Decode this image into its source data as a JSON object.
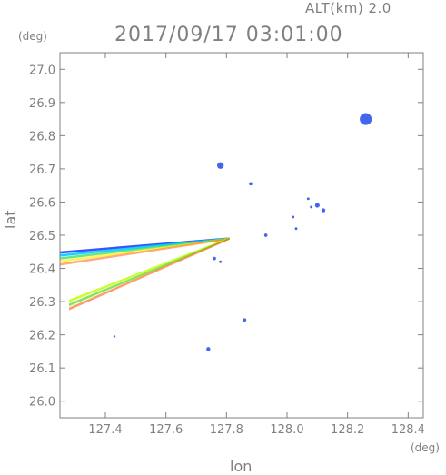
{
  "header": {
    "alt_label": "ALT(km)  2.0",
    "timestamp": "2017/09/17 03:01:00",
    "y_unit": "(deg)",
    "x_unit": "(deg)"
  },
  "chart_data": {
    "type": "scatter",
    "xlabel": "lon",
    "ylabel": "lat",
    "xlim": [
      127.25,
      128.45
    ],
    "ylim": [
      25.95,
      27.05
    ],
    "xticks": [
      127.4,
      127.6,
      127.8,
      128.0,
      128.2,
      128.4
    ],
    "xtick_labels": [
      "127.4",
      "127.6",
      "127.8",
      "128.0",
      "128.2",
      "128.4"
    ],
    "yticks": [
      26.0,
      26.1,
      26.2,
      26.3,
      26.4,
      26.5,
      26.6,
      26.7,
      26.8,
      26.9,
      27.0
    ],
    "ytick_labels": [
      "26.0",
      "26.1",
      "26.2",
      "26.3",
      "26.4",
      "26.5",
      "26.6",
      "26.7",
      "26.8",
      "26.9",
      "27.0"
    ],
    "grid": false,
    "streaks": [
      {
        "x": [
          127.25,
          127.81
        ],
        "y": [
          26.43,
          26.49
        ],
        "width": 0.018,
        "colors": [
          "#3355ff",
          "#00c8ff",
          "#33dd66",
          "#ffee00",
          "#ff5500"
        ]
      },
      {
        "x": [
          127.28,
          127.81
        ],
        "y": [
          26.29,
          26.49
        ],
        "width": 0.012,
        "colors": [
          "#ccff33",
          "#66dd33",
          "#ff5500"
        ]
      }
    ],
    "echoes": [
      {
        "x": 128.26,
        "y": 26.85,
        "size": 0.018,
        "color": "#4466ee"
      },
      {
        "x": 127.78,
        "y": 26.71,
        "size": 0.01,
        "color": "#4466ee"
      },
      {
        "x": 127.88,
        "y": 26.655,
        "size": 0.005,
        "color": "#4466ee"
      },
      {
        "x": 128.07,
        "y": 26.61,
        "size": 0.004,
        "color": "#4466ee"
      },
      {
        "x": 128.1,
        "y": 26.59,
        "size": 0.007,
        "color": "#4466ee"
      },
      {
        "x": 128.12,
        "y": 26.575,
        "size": 0.006,
        "color": "#4466ee"
      },
      {
        "x": 128.08,
        "y": 26.585,
        "size": 0.004,
        "color": "#4466ee"
      },
      {
        "x": 128.02,
        "y": 26.555,
        "size": 0.004,
        "color": "#4466ee"
      },
      {
        "x": 128.03,
        "y": 26.52,
        "size": 0.004,
        "color": "#4466ee"
      },
      {
        "x": 127.93,
        "y": 26.5,
        "size": 0.005,
        "color": "#4466ee"
      },
      {
        "x": 127.76,
        "y": 26.43,
        "size": 0.005,
        "color": "#4466ee"
      },
      {
        "x": 127.78,
        "y": 26.42,
        "size": 0.004,
        "color": "#4466ee"
      },
      {
        "x": 127.86,
        "y": 26.245,
        "size": 0.005,
        "color": "#4466ee"
      },
      {
        "x": 127.43,
        "y": 26.195,
        "size": 0.003,
        "color": "#4466ee"
      },
      {
        "x": 127.74,
        "y": 26.157,
        "size": 0.006,
        "color": "#4466ee"
      }
    ]
  }
}
